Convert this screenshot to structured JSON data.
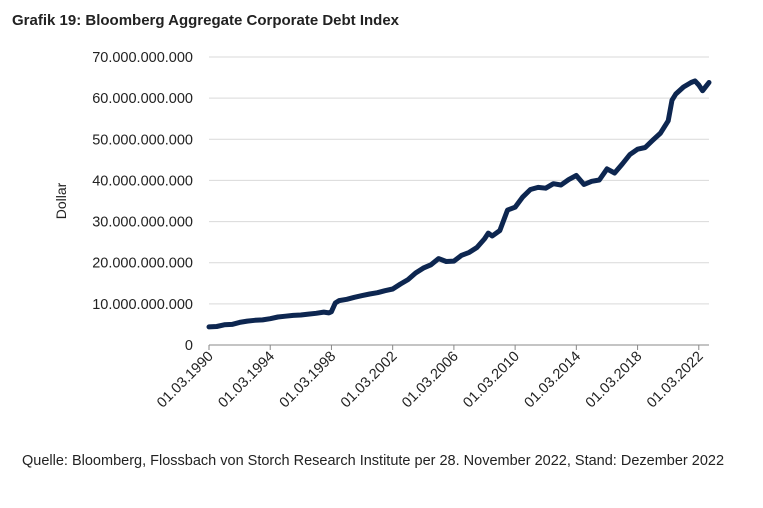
{
  "title": "Grafik 19: Bloomberg Aggregate Corporate Debt Index",
  "source": "Quelle: Bloomberg, Flossbach von Storch Research Institute per 28. November 2022, Stand: Dezember 2022",
  "colors": {
    "line": "#0d2650",
    "grid": "#d9d9d9",
    "axis": "#888888"
  },
  "chart_data": {
    "type": "line",
    "title": "Grafik 19: Bloomberg Aggregate Corporate Debt Index",
    "ylabel": "Dollar",
    "xlabel": "",
    "ylim": [
      0,
      70000000000
    ],
    "yticks": [
      0,
      10000000000,
      20000000000,
      30000000000,
      40000000000,
      50000000000,
      60000000000,
      70000000000
    ],
    "ytick_labels": [
      "0",
      "10.000.000.000",
      "20.000.000.000",
      "30.000.000.000",
      "40.000.000.000",
      "50.000.000.000",
      "60.000.000.000",
      "70.000.000.000"
    ],
    "xlim": [
      "01.03.1990",
      "01.11.2022"
    ],
    "xticks": [
      "01.03.1990",
      "01.03.1994",
      "01.03.1998",
      "01.03.2002",
      "01.03.2006",
      "01.03.2010",
      "01.03.2014",
      "01.03.2018",
      "01.03.2022"
    ],
    "grid": true,
    "legend": "none",
    "series": [
      {
        "x": [
          "1990-03",
          "1990-09",
          "1991-03",
          "1991-09",
          "1992-03",
          "1992-09",
          "1993-03",
          "1993-09",
          "1994-03",
          "1994-09",
          "1995-03",
          "1995-09",
          "1996-03",
          "1996-09",
          "1997-03",
          "1997-09",
          "1998-01",
          "1998-03",
          "1998-06",
          "1998-09",
          "1999-03",
          "1999-09",
          "2000-03",
          "2000-09",
          "2001-03",
          "2001-09",
          "2002-03",
          "2002-09",
          "2003-03",
          "2003-09",
          "2004-03",
          "2004-09",
          "2005-03",
          "2005-09",
          "2006-03",
          "2006-09",
          "2007-03",
          "2007-09",
          "2008-03",
          "2008-06",
          "2008-09",
          "2009-03",
          "2009-09",
          "2010-03",
          "2010-09",
          "2011-03",
          "2011-09",
          "2012-03",
          "2012-09",
          "2013-03",
          "2013-09",
          "2014-03",
          "2014-09",
          "2015-03",
          "2015-09",
          "2016-03",
          "2016-09",
          "2017-03",
          "2017-09",
          "2018-03",
          "2018-09",
          "2019-03",
          "2019-09",
          "2020-03",
          "2020-06",
          "2020-09",
          "2021-03",
          "2021-09",
          "2021-12",
          "2022-03",
          "2022-06",
          "2022-09",
          "2022-11"
        ],
        "values": [
          4400000000,
          4500000000,
          4900000000,
          5000000000,
          5500000000,
          5800000000,
          6000000000,
          6100000000,
          6400000000,
          6800000000,
          7000000000,
          7200000000,
          7300000000,
          7500000000,
          7700000000,
          8000000000,
          7800000000,
          8100000000,
          10200000000,
          10800000000,
          11100000000,
          11600000000,
          12000000000,
          12400000000,
          12700000000,
          13200000000,
          13600000000,
          14800000000,
          15900000000,
          17500000000,
          18700000000,
          19500000000,
          21000000000,
          20300000000,
          20400000000,
          21800000000,
          22500000000,
          23700000000,
          25800000000,
          27200000000,
          26500000000,
          27800000000,
          32800000000,
          33500000000,
          36000000000,
          37800000000,
          38300000000,
          38100000000,
          39200000000,
          38900000000,
          40200000000,
          41200000000,
          39000000000,
          39800000000,
          40100000000,
          42800000000,
          41800000000,
          44000000000,
          46300000000,
          47600000000,
          48000000000,
          49800000000,
          51500000000,
          54500000000,
          59500000000,
          61000000000,
          62700000000,
          63800000000,
          64200000000,
          63200000000,
          61800000000,
          63000000000,
          63800000000
        ]
      }
    ]
  }
}
